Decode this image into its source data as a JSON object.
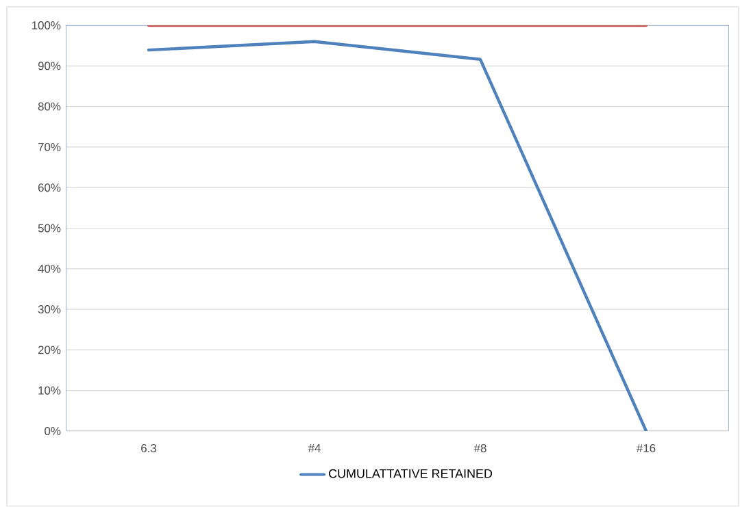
{
  "chart_data": {
    "type": "line",
    "categories": [
      "6.3",
      "#4",
      "#8",
      "#16"
    ],
    "series": [
      {
        "name": "CUMULATTATIVE RETAINED",
        "color": "#4f81bd",
        "values": [
          93.9,
          96.0,
          91.6,
          0
        ]
      },
      {
        "color": "#c0504d",
        "values": [
          100,
          100,
          100,
          100
        ]
      }
    ],
    "ylim": [
      0,
      100
    ],
    "yticks": [
      {
        "value": 0,
        "label": "0%"
      },
      {
        "value": 10,
        "label": "10%"
      },
      {
        "value": 20,
        "label": "20%"
      },
      {
        "value": 30,
        "label": "30%"
      },
      {
        "value": 40,
        "label": "40%"
      },
      {
        "value": 50,
        "label": "50%"
      },
      {
        "value": 60,
        "label": "60%"
      },
      {
        "value": 70,
        "label": "70%"
      },
      {
        "value": 80,
        "label": "80%"
      },
      {
        "value": 90,
        "label": "90%"
      },
      {
        "value": 100,
        "label": "100%"
      }
    ],
    "grid": "y",
    "legend": "bottom",
    "marker": "none",
    "line_style": "solid"
  }
}
